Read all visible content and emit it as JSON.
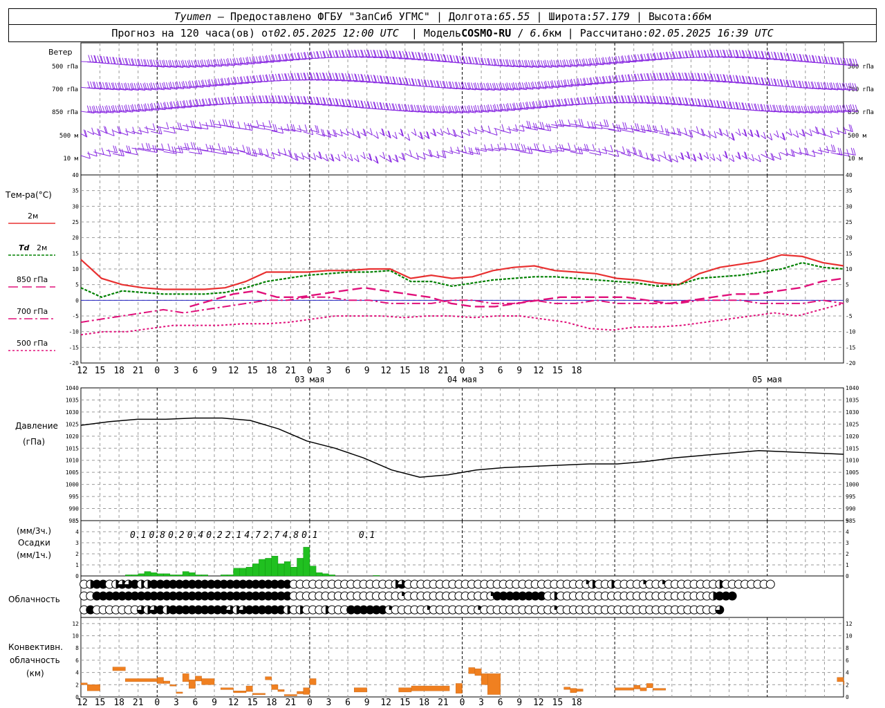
{
  "header": {
    "station": "Tyumen",
    "provider": "Предоставлено ФГБУ \"ЗапСиб УГМС\"",
    "lon_label": "Долгота:",
    "lon": "65.55",
    "lat_label": "Широта:",
    "lat": "57.179",
    "alt_label": "Высота:",
    "alt": "66",
    "alt_unit": "м",
    "forecast_label": "Прогноз на 120 часа(ов) от",
    "forecast_time": "02.05.2025 12:00 UTC",
    "model_label": "Модель",
    "model": "COSMO-RU",
    "res": "6.6",
    "res_unit": "км",
    "calc_label": "Рассчитано:",
    "calc_time": "02.05.2025 16:39 UTC"
  },
  "labels": {
    "wind": "Ветер",
    "temp": "Тем-ра(°C)",
    "t2m": "2м",
    "td_sym": "Td",
    "td2m": "2м",
    "t850": "850 гПа",
    "t700": "700 гПа",
    "t500": "500 гПа",
    "pressure": "Давление",
    "pressure_unit": "(гПа)",
    "precip_unit3": "(мм/3ч.)",
    "precip": "Осадки",
    "precip_unit1": "(мм/1ч.)",
    "cloud": "Облачность",
    "conv1": "Конвективн.",
    "conv2": "облачность",
    "conv3": "(км)"
  },
  "wind_levels": [
    "500 гПа",
    "700 гПа",
    "850 гПа",
    "500 м",
    "10 м"
  ],
  "time_ticks": [
    "12",
    "15",
    "18",
    "21",
    "0",
    "3",
    "6",
    "9",
    "12",
    "15",
    "18",
    "21",
    "0",
    "3",
    "6",
    "9",
    "12",
    "15",
    "18",
    "21",
    "0",
    "3",
    "6",
    "9",
    "12",
    "15",
    "18"
  ],
  "day_labels": [
    "03 мая",
    "04 мая",
    "05 мая"
  ],
  "colors": {
    "t2m": "#e83030",
    "td": "#008000",
    "t850": "#e0107a",
    "wind": "#8a2be2",
    "precip": "#20c020",
    "conv": "#f08020",
    "zero": "#2020c0"
  },
  "chart_data": [
    {
      "type": "line",
      "title": "Тем-ра(°C)",
      "x_hours": [
        0,
        3,
        6,
        9,
        12,
        15,
        18,
        21,
        24,
        27,
        30,
        33,
        36,
        39,
        42,
        45,
        48,
        51,
        54,
        57,
        60,
        63,
        66,
        69,
        72,
        75,
        78,
        81,
        84,
        87,
        90,
        93,
        96,
        99,
        102,
        105,
        108,
        111,
        114,
        117,
        120
      ],
      "ylim": [
        -20,
        40
      ],
      "yticks": [
        -20,
        -15,
        -10,
        -5,
        0,
        5,
        10,
        15,
        20,
        25,
        30,
        35,
        40
      ],
      "series": [
        {
          "name": "2м",
          "values": [
            13,
            7,
            5,
            4,
            3.5,
            3.5,
            3.5,
            4,
            6,
            9,
            9,
            9,
            9.5,
            9.5,
            10,
            10,
            7,
            8,
            7,
            7.5,
            9.5,
            10.5,
            11,
            9.5,
            9,
            8.5,
            7,
            6.5,
            5.5,
            5,
            8.5,
            10.5,
            11.5,
            12.5,
            14.5,
            14,
            12,
            11
          ]
        },
        {
          "name": "Td 2м",
          "values": [
            4,
            1,
            3,
            2.5,
            2,
            2,
            2,
            2.5,
            4,
            6,
            7,
            8,
            8.5,
            9,
            9,
            9.5,
            6,
            6,
            4.5,
            5.5,
            6.5,
            7,
            7.5,
            7.5,
            7,
            6.5,
            6,
            5.5,
            4.5,
            5,
            7,
            7.5,
            8,
            9,
            10,
            12,
            10.5,
            10
          ]
        },
        {
          "name": "850 гПа",
          "values": [
            null,
            null,
            null,
            null,
            null,
            -2,
            0,
            2,
            3,
            1,
            1,
            2,
            3,
            4,
            3,
            2,
            1,
            -1,
            -2,
            -2,
            -1,
            0,
            1,
            1,
            1,
            1,
            0,
            -1,
            0,
            1,
            2,
            2,
            3,
            4,
            6,
            7
          ]
        },
        {
          "name": "700 гПа",
          "values": [
            -7,
            -6,
            -5,
            -4,
            -3,
            -4,
            -3,
            -2,
            -1,
            0,
            0,
            1,
            1,
            0,
            0,
            -1,
            -1,
            -1,
            0,
            0,
            -1,
            -1,
            0,
            -1,
            -1,
            0,
            -1,
            -1,
            -1,
            -1,
            0,
            0,
            0,
            -1,
            -1,
            -1,
            0,
            -1
          ]
        },
        {
          "name": "500 гПа",
          "values": [
            -11,
            -10,
            -10,
            -9,
            -8,
            -8,
            -8,
            -7.5,
            -7.5,
            -7,
            -6,
            -5,
            -5,
            -5,
            -5.5,
            -5,
            -5,
            -5.5,
            -5,
            -5,
            -6,
            -7,
            -9,
            -9.5,
            -8.5,
            -8.5,
            -8,
            -7,
            -6,
            -5,
            -4,
            -5,
            -3,
            -1
          ]
        }
      ]
    },
    {
      "type": "line",
      "title": "Давление",
      "ylabel": "(гПа)",
      "ylim": [
        985,
        1040
      ],
      "yticks": [
        985,
        990,
        995,
        1000,
        1005,
        1010,
        1015,
        1020,
        1025,
        1030,
        1035,
        1040
      ],
      "series": [
        {
          "name": "Давление",
          "values": [
            1024.5,
            1026,
            1027,
            1027,
            1027.5,
            1027.5,
            1026.5,
            1023,
            1018,
            1015,
            1011,
            1006,
            1003,
            1004,
            1006,
            1007,
            1007.5,
            1008,
            1008.5,
            1008.5,
            1009.5,
            1011,
            1012,
            1013,
            1014,
            1013.5,
            1013,
            1012.5
          ]
        }
      ]
    },
    {
      "type": "bar",
      "title": "Осадки",
      "ylim": [
        0,
        5
      ],
      "yticks": [
        0,
        1,
        2,
        3,
        4,
        5
      ],
      "three_hour_totals": [
        {
          "hour": 9,
          "value": "0.1"
        },
        {
          "hour": 12,
          "value": "0.8"
        },
        {
          "hour": 15,
          "value": "0.2"
        },
        {
          "hour": 18,
          "value": "0.4"
        },
        {
          "hour": 21,
          "value": "0.2"
        },
        {
          "hour": 24,
          "value": "2.1"
        },
        {
          "hour": 27,
          "value": "4.7"
        },
        {
          "hour": 30,
          "value": "2.7"
        },
        {
          "hour": 33,
          "value": "4.8"
        },
        {
          "hour": 36,
          "value": "0.1"
        },
        {
          "hour": 45,
          "value": "0.1"
        }
      ],
      "hourly_values": [
        0,
        0,
        0,
        0,
        0,
        0,
        0,
        0.1,
        0.1,
        0.2,
        0.4,
        0.3,
        0.2,
        0.2,
        0.1,
        0.1,
        0.4,
        0.3,
        0.1,
        0.1,
        0,
        0,
        0.1,
        0.1,
        0.7,
        0.7,
        0.8,
        1.1,
        1.5,
        1.6,
        1.8,
        1.1,
        1.3,
        0.8,
        1.6,
        2.6,
        0.9,
        0.3,
        0.2,
        0.1,
        0,
        0,
        0,
        0,
        0,
        0,
        0.05
      ]
    },
    {
      "type": "heatmap",
      "title": "Облачность",
      "rows_note": "oktas-like fraction 0..1 per 1h, three layers",
      "rows": [
        [
          0,
          0.5,
          1,
          1,
          0,
          0.5,
          0.75,
          0.75,
          1,
          0.5,
          0.5,
          1,
          1,
          1,
          1,
          1,
          1,
          1,
          1,
          1,
          1,
          1,
          1,
          1,
          1,
          1,
          1,
          1,
          1,
          1,
          1,
          1,
          1,
          0,
          0,
          0,
          0,
          0,
          0,
          0,
          0,
          0,
          0,
          0,
          0,
          0,
          0,
          0,
          0,
          0.5,
          0.75,
          0,
          0,
          0,
          0,
          0,
          0,
          0,
          0,
          0,
          0,
          0,
          0,
          0,
          0,
          0,
          0,
          0,
          0,
          0,
          0,
          0,
          0,
          0,
          0,
          0,
          0,
          0,
          0,
          0.25,
          0.5,
          0,
          0,
          0.5,
          0,
          0,
          0,
          0,
          0.25,
          0,
          0,
          0.25,
          0,
          0,
          0,
          0,
          0,
          0,
          0,
          0,
          0.5,
          0,
          0,
          0,
          0,
          0,
          0,
          0,
          0
        ],
        [
          0,
          0,
          1,
          1,
          1,
          1,
          1,
          1,
          1,
          1,
          1,
          1,
          1,
          1,
          1,
          1,
          1,
          1,
          1,
          1,
          1,
          1,
          1,
          1,
          1,
          1,
          1,
          1,
          1,
          1,
          1,
          1,
          1,
          0,
          0,
          0,
          0,
          0,
          0,
          0,
          0,
          0,
          0,
          0,
          0,
          0,
          0,
          0,
          0,
          0,
          0.25,
          0,
          0,
          0,
          0,
          0,
          0,
          0,
          0,
          0,
          0,
          0,
          0,
          0,
          0.25,
          1,
          1,
          1,
          1,
          1,
          1,
          1,
          1,
          0,
          0.5,
          0,
          0,
          0,
          0,
          0,
          0,
          0,
          0,
          0,
          0,
          0,
          0,
          0,
          0,
          0,
          0,
          0,
          0,
          0,
          0,
          0,
          0,
          0,
          0,
          0.5,
          1,
          1,
          1
        ],
        [
          0,
          1,
          0,
          0,
          0,
          0,
          0,
          0,
          0,
          0.75,
          0.5,
          0.75,
          1,
          0.5,
          1,
          1,
          1,
          1,
          1,
          1,
          1,
          1,
          1,
          0.75,
          0.5,
          0.75,
          1,
          1,
          1,
          1,
          1,
          1,
          0.5,
          0,
          0.5,
          0,
          0,
          0,
          0.5,
          0,
          0,
          0,
          1,
          1,
          1,
          1,
          1,
          1,
          0.25,
          0,
          0,
          0,
          0,
          0,
          0.25,
          0,
          0,
          0,
          0,
          0,
          0,
          0,
          0.25,
          0,
          0,
          0,
          0,
          0,
          0,
          0,
          0,
          0,
          0,
          0,
          0.25,
          0,
          0,
          0,
          0,
          0,
          0,
          0,
          0,
          0,
          0,
          0,
          0,
          0,
          0,
          0,
          0,
          0,
          0,
          0,
          0,
          0,
          0,
          0,
          0,
          0,
          0.75
        ]
      ]
    },
    {
      "type": "bar",
      "title": "Конвективн. облачность",
      "ylabel": "(км)",
      "ylim": [
        0,
        13
      ],
      "yticks": [
        0,
        2,
        4,
        6,
        8,
        10,
        12
      ],
      "segments": [
        {
          "h0": 0,
          "h1": 1,
          "base": 2,
          "top": 2.3
        },
        {
          "h0": 1,
          "h1": 3,
          "base": 1,
          "top": 2
        },
        {
          "h0": 5,
          "h1": 7,
          "base": 4.3,
          "top": 4.9
        },
        {
          "h0": 7,
          "h1": 12,
          "base": 2.5,
          "top": 3
        },
        {
          "h0": 12,
          "h1": 13,
          "base": 2.2,
          "top": 3.2
        },
        {
          "h0": 13,
          "h1": 14,
          "base": 2.2,
          "top": 2.6
        },
        {
          "h0": 14,
          "h1": 15,
          "base": 1.8,
          "top": 2
        },
        {
          "h0": 15,
          "h1": 16,
          "base": 0.6,
          "top": 0.8
        },
        {
          "h0": 16,
          "h1": 17,
          "base": 2.5,
          "top": 3.8
        },
        {
          "h0": 17,
          "h1": 18,
          "base": 1.4,
          "top": 2.8
        },
        {
          "h0": 18,
          "h1": 19,
          "base": 2.6,
          "top": 3.4
        },
        {
          "h0": 19,
          "h1": 21,
          "base": 2,
          "top": 3
        },
        {
          "h0": 22,
          "h1": 24,
          "base": 1.2,
          "top": 1.5
        },
        {
          "h0": 24,
          "h1": 26,
          "base": 0.7,
          "top": 1
        },
        {
          "h0": 26,
          "h1": 27,
          "base": 0.9,
          "top": 1.8
        },
        {
          "h0": 27,
          "h1": 29,
          "base": 0.4,
          "top": 0.6
        },
        {
          "h0": 29,
          "h1": 30,
          "base": 2.8,
          "top": 3.3
        },
        {
          "h0": 30,
          "h1": 31,
          "base": 1.2,
          "top": 2
        },
        {
          "h0": 31,
          "h1": 32,
          "base": 0.9,
          "top": 1.2
        },
        {
          "h0": 32,
          "h1": 34,
          "base": 0.2,
          "top": 0.4
        },
        {
          "h0": 34,
          "h1": 35,
          "base": 0.5,
          "top": 0.9
        },
        {
          "h0": 35,
          "h1": 36,
          "base": 0.4,
          "top": 1.5
        },
        {
          "h0": 36,
          "h1": 37,
          "base": 2,
          "top": 3
        },
        {
          "h0": 43,
          "h1": 45,
          "base": 0.8,
          "top": 1.5
        },
        {
          "h0": 50,
          "h1": 52,
          "base": 0.8,
          "top": 1.5
        },
        {
          "h0": 52,
          "h1": 58,
          "base": 1,
          "top": 1.8
        },
        {
          "h0": 59,
          "h1": 60,
          "base": 0.6,
          "top": 2.2
        },
        {
          "h0": 61,
          "h1": 62,
          "base": 3.8,
          "top": 4.8
        },
        {
          "h0": 62,
          "h1": 63,
          "base": 3.5,
          "top": 4.6
        },
        {
          "h0": 63,
          "h1": 64,
          "base": 2,
          "top": 3.8
        },
        {
          "h0": 64,
          "h1": 66,
          "base": 0.4,
          "top": 3.8
        },
        {
          "h0": 76,
          "h1": 77,
          "base": 1.2,
          "top": 1.6
        },
        {
          "h0": 77,
          "h1": 78,
          "base": 0.7,
          "top": 1.4
        },
        {
          "h0": 78,
          "h1": 79,
          "base": 0.9,
          "top": 1.3
        },
        {
          "h0": 84,
          "h1": 87,
          "base": 1.1,
          "top": 1.5
        },
        {
          "h0": 87,
          "h1": 88,
          "base": 1.3,
          "top": 1.9
        },
        {
          "h0": 88,
          "h1": 89,
          "base": 1,
          "top": 1.5
        },
        {
          "h0": 89,
          "h1": 90,
          "base": 1.5,
          "top": 2.2
        },
        {
          "h0": 90,
          "h1": 92,
          "base": 1.1,
          "top": 1.4
        },
        {
          "h0": 119,
          "h1": 120,
          "base": 2.5,
          "top": 3.2
        },
        {
          "h0": 120,
          "h1": 121,
          "base": 2,
          "top": 2.6
        }
      ]
    }
  ]
}
